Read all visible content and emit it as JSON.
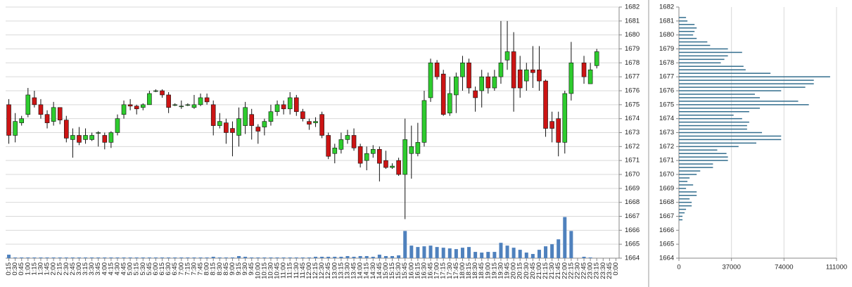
{
  "chart_data": [
    {
      "type": "candlestick",
      "categories": [
        "0:15",
        "0:30",
        "0:45",
        "1:00",
        "1:15",
        "1:30",
        "1:45",
        "2:00",
        "2:15",
        "2:30",
        "2:45",
        "3:00",
        "3:15",
        "3:30",
        "3:45",
        "4:00",
        "4:15",
        "4:30",
        "4:45",
        "5:00",
        "5:15",
        "5:30",
        "5:45",
        "6:00",
        "6:15",
        "6:30",
        "6:45",
        "7:00",
        "7:15",
        "7:30",
        "7:45",
        "8:00",
        "8:15",
        "8:30",
        "8:45",
        "9:00",
        "9:15",
        "9:30",
        "9:45",
        "10:00",
        "10:15",
        "10:30",
        "10:45",
        "11:00",
        "11:15",
        "11:30",
        "11:45",
        "12:00",
        "12:15",
        "12:30",
        "12:45",
        "13:00",
        "13:15",
        "13:30",
        "13:45",
        "14:00",
        "14:15",
        "14:30",
        "14:45",
        "15:00",
        "15:15",
        "15:30",
        "15:45",
        "16:00",
        "16:15",
        "16:30",
        "16:45",
        "17:00",
        "17:15",
        "17:30",
        "17:45",
        "18:00",
        "18:15",
        "18:30",
        "18:45",
        "19:00",
        "19:15",
        "19:30",
        "19:45",
        "20:00",
        "20:15",
        "20:30",
        "20:45",
        "21:00",
        "21:15",
        "21:30",
        "21:45",
        "22:00",
        "22:15",
        "22:30",
        "22:45",
        "23:00",
        "23:15",
        "23:30",
        "23:45",
        "0:00"
      ],
      "open": [
        1675.0,
        1672.8,
        1673.7,
        1674.3,
        1675.5,
        1675.0,
        1674.3,
        1673.8,
        1674.8,
        1673.9,
        1672.5,
        1672.8,
        1672.5,
        1672.5,
        1673.0,
        1672.8,
        1672.3,
        1673.0,
        1674.3,
        1675.0,
        1674.9,
        1674.8,
        1675.0,
        1676.0,
        1676.0,
        1675.7,
        1674.95,
        1674.9,
        1674.95,
        1674.8,
        1675.0,
        1675.5,
        1675.0,
        1673.5,
        1673.7,
        1673.3,
        1672.8,
        1673.5,
        1674.3,
        1673.4,
        1673.4,
        1673.8,
        1674.5,
        1675.0,
        1674.7,
        1675.5,
        1674.5,
        1673.8,
        1673.7,
        1674.3,
        1672.8,
        1671.5,
        1671.8,
        1672.5,
        1672.8,
        1672.0,
        1671.0,
        1671.5,
        1671.8,
        1671.0,
        1670.5,
        1671.0,
        1670.0,
        1671.5,
        1671.5,
        1672.3,
        1675.5,
        1678.0,
        1677.2,
        1674.4,
        1675.7,
        1677.0,
        1678.0,
        1676.0,
        1676.0,
        1677.0,
        1676.2,
        1677.0,
        1678.2,
        1678.8,
        1677.5,
        1676.7,
        1677.5,
        1677.5,
        1676.7,
        1673.8,
        1674.0,
        1672.3,
        1675.8,
        null,
        1678.0,
        1676.5,
        1677.8,
        null,
        null,
        null
      ],
      "high": [
        1675.4,
        1674.4,
        1674.2,
        1676.2,
        1676.0,
        1675.4,
        1674.6,
        1675.2,
        1674.8,
        1674.2,
        1673.3,
        1673.4,
        1673.3,
        1673.0,
        1673.1,
        1673.0,
        1673.1,
        1674.3,
        1675.3,
        1675.4,
        1675.0,
        1675.1,
        1676.0,
        1676.1,
        1676.1,
        1675.9,
        1675.1,
        1675.3,
        1675.1,
        1675.7,
        1675.8,
        1675.8,
        1675.3,
        1674.4,
        1674.0,
        1673.8,
        1674.8,
        1675.2,
        1674.7,
        1673.6,
        1674.0,
        1675.0,
        1675.3,
        1675.3,
        1675.9,
        1675.7,
        1674.7,
        1674.0,
        1674.1,
        1674.5,
        1673.0,
        1672.2,
        1673.0,
        1673.2,
        1673.3,
        1672.2,
        1672.0,
        1672.1,
        1672.0,
        1671.7,
        1670.8,
        1671.2,
        1674.0,
        1673.5,
        1673.7,
        1676.0,
        1678.3,
        1678.2,
        1677.5,
        1677.0,
        1677.3,
        1678.5,
        1678.3,
        1676.3,
        1677.5,
        1677.3,
        1677.5,
        1681.0,
        1681.0,
        1680.2,
        1678.5,
        1678.0,
        1679.2,
        1679.2,
        1676.8,
        1674.5,
        1674.5,
        1676.0,
        1679.5,
        null,
        1678.5,
        1678.0,
        1679.0,
        null,
        null,
        null
      ],
      "low": [
        1672.2,
        1672.3,
        1673.5,
        1674.1,
        1674.8,
        1674.0,
        1673.3,
        1673.5,
        1673.6,
        1672.3,
        1671.2,
        1672.1,
        1672.2,
        1672.4,
        1672.0,
        1671.8,
        1671.9,
        1672.8,
        1674.0,
        1674.6,
        1674.3,
        1674.6,
        1675.0,
        1675.9,
        1675.5,
        1674.4,
        1674.9,
        1674.7,
        1674.9,
        1674.7,
        1674.9,
        1675.0,
        1672.8,
        1673.3,
        1672.2,
        1671.3,
        1672.0,
        1672.9,
        1672.5,
        1672.2,
        1672.8,
        1673.5,
        1674.2,
        1674.3,
        1674.3,
        1674.2,
        1673.8,
        1673.2,
        1673.4,
        1672.6,
        1671.1,
        1670.8,
        1671.5,
        1672.2,
        1671.7,
        1670.5,
        1670.3,
        1671.2,
        1669.5,
        1670.4,
        1670.4,
        1669.9,
        1666.8,
        1669.7,
        1671.3,
        1672.0,
        1675.2,
        1676.8,
        1674.2,
        1674.2,
        1674.4,
        1676.0,
        1675.8,
        1674.5,
        1674.8,
        1675.8,
        1676.0,
        1676.5,
        1677.5,
        1674.5,
        1675.5,
        1676.0,
        1676.2,
        1676.0,
        1672.7,
        1672.3,
        1671.3,
        1671.5,
        1675.3,
        null,
        1676.5,
        1676.5,
        1677.6,
        null,
        null,
        null
      ],
      "close": [
        1672.8,
        1673.8,
        1674.0,
        1675.7,
        1675.0,
        1674.3,
        1673.7,
        1674.8,
        1673.9,
        1672.6,
        1672.8,
        1672.3,
        1672.8,
        1672.8,
        1673.0,
        1672.3,
        1673.0,
        1674.0,
        1675.0,
        1674.9,
        1674.7,
        1675.0,
        1675.8,
        1676.0,
        1675.7,
        1674.8,
        1675.0,
        1674.9,
        1675.0,
        1675.0,
        1675.5,
        1675.2,
        1673.5,
        1673.8,
        1673.0,
        1673.0,
        1674.0,
        1674.8,
        1673.5,
        1673.1,
        1673.8,
        1674.5,
        1675.0,
        1674.7,
        1675.5,
        1674.5,
        1674.0,
        1673.6,
        1673.8,
        1672.8,
        1671.3,
        1671.9,
        1672.5,
        1672.8,
        1671.9,
        1670.8,
        1671.5,
        1671.8,
        1670.8,
        1670.5,
        1670.6,
        1670.0,
        1672.5,
        1672.0,
        1672.3,
        1675.3,
        1678.0,
        1677.0,
        1674.3,
        1675.8,
        1677.0,
        1678.0,
        1676.2,
        1675.5,
        1677.0,
        1676.2,
        1677.0,
        1678.0,
        1678.8,
        1676.2,
        1676.2,
        1677.5,
        1677.3,
        1676.7,
        1673.3,
        1673.3,
        1672.3,
        1675.8,
        1678.0,
        null,
        1677.0,
        1677.5,
        1678.8,
        null,
        null,
        null
      ],
      "volume": [
        500,
        100,
        100,
        100,
        100,
        100,
        100,
        100,
        100,
        100,
        100,
        100,
        100,
        100,
        100,
        100,
        100,
        100,
        100,
        100,
        100,
        100,
        100,
        100,
        100,
        100,
        100,
        100,
        100,
        100,
        100,
        100,
        200,
        100,
        100,
        100,
        300,
        200,
        100,
        100,
        100,
        100,
        100,
        100,
        100,
        100,
        100,
        100,
        200,
        200,
        200,
        200,
        200,
        300,
        200,
        300,
        300,
        200,
        500,
        300,
        300,
        400,
        3900,
        1800,
        1600,
        1700,
        1800,
        1600,
        1500,
        1400,
        1300,
        1500,
        1600,
        900,
        800,
        900,
        900,
        2200,
        1800,
        1500,
        1200,
        800,
        600,
        1200,
        1700,
        2000,
        2700,
        5900,
        3900,
        null,
        200,
        100,
        null,
        null,
        null,
        null
      ],
      "up_color": "#2ecc2e",
      "down_color": "#cc1414",
      "volume_color": "#4f81bd",
      "ylim": [
        1664,
        1682
      ],
      "yticks": [
        1664,
        1665,
        1666,
        1667,
        1668,
        1669,
        1670,
        1671,
        1672,
        1673,
        1674,
        1675,
        1676,
        1677,
        1678,
        1679,
        1680,
        1681,
        1682
      ],
      "y2lim": [
        0,
        36000
      ],
      "grid": true
    },
    {
      "type": "barh",
      "y": [
        1681.25,
        1681.0,
        1680.75,
        1680.5,
        1680.25,
        1680.0,
        1679.75,
        1679.5,
        1679.25,
        1679.0,
        1678.75,
        1678.5,
        1678.25,
        1678.0,
        1677.75,
        1677.5,
        1677.25,
        1677.0,
        1676.75,
        1676.5,
        1676.25,
        1676.0,
        1675.75,
        1675.5,
        1675.25,
        1675.0,
        1674.75,
        1674.5,
        1674.25,
        1674.0,
        1673.75,
        1673.5,
        1673.25,
        1673.0,
        1672.75,
        1672.5,
        1672.25,
        1672.0,
        1671.75,
        1671.5,
        1671.25,
        1671.0,
        1670.75,
        1670.5,
        1670.25,
        1670.0,
        1669.75,
        1669.5,
        1669.25,
        1669.0,
        1668.75,
        1668.5,
        1668.25,
        1668.0,
        1667.75,
        1667.5,
        1667.25,
        1667.0,
        1666.75
      ],
      "values": [
        5000,
        6000,
        11000,
        12500,
        11000,
        10000,
        12500,
        20000,
        22000,
        34500,
        44500,
        34500,
        32000,
        29500,
        45500,
        47000,
        64500,
        106500,
        95000,
        95000,
        89000,
        72000,
        53500,
        57000,
        84000,
        91500,
        57000,
        49500,
        38500,
        44500,
        49500,
        48000,
        48000,
        58500,
        72000,
        72000,
        54500,
        42000,
        27000,
        33500,
        34500,
        34500,
        24000,
        24000,
        15000,
        12500,
        7500,
        6000,
        10000,
        5000,
        12500,
        12500,
        7500,
        9000,
        9000,
        5000,
        4000,
        2500,
        2500
      ],
      "color": "#336e8e",
      "xlim": [
        0,
        111000
      ],
      "xticks": [
        0,
        37000,
        74000,
        111000
      ],
      "ylim": [
        1664,
        1682
      ],
      "yticks": [
        1664,
        1665,
        1666,
        1667,
        1668,
        1669,
        1670,
        1671,
        1672,
        1673,
        1674,
        1675,
        1676,
        1677,
        1678,
        1679,
        1680,
        1681,
        1682
      ],
      "grid": true
    }
  ]
}
